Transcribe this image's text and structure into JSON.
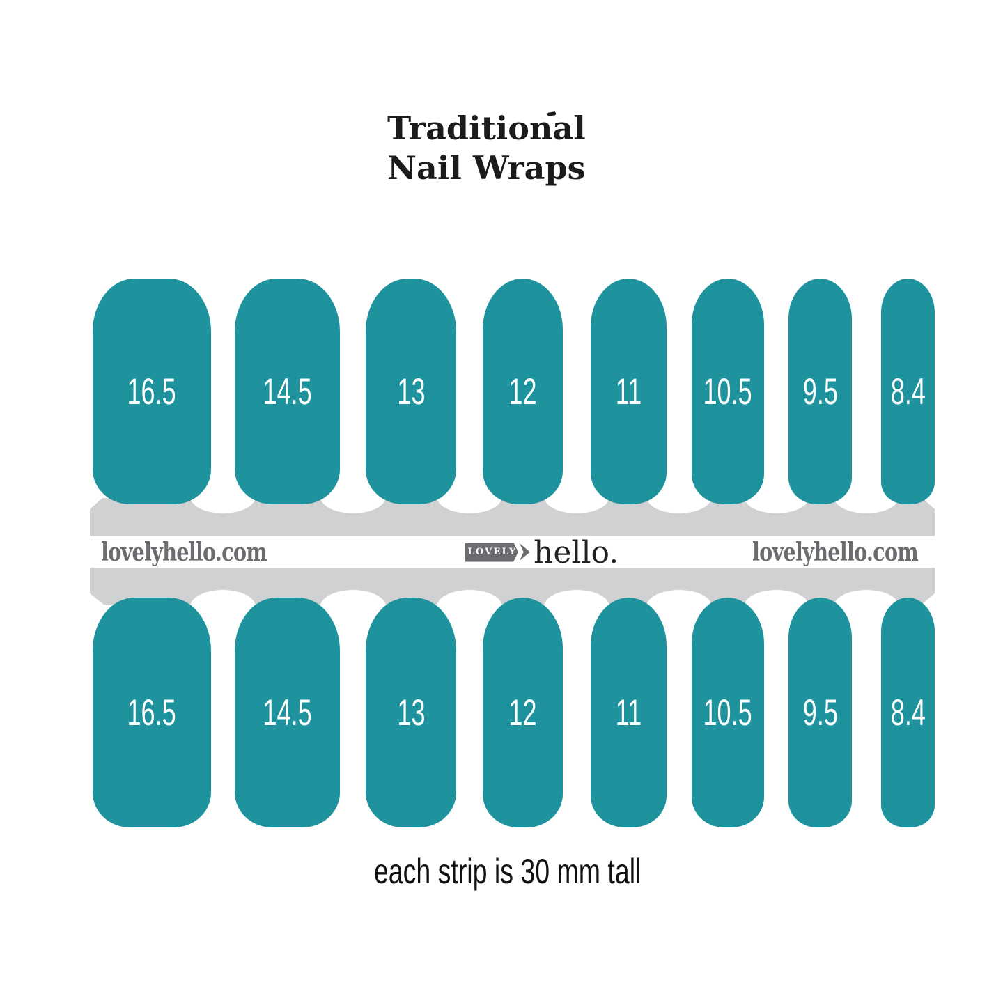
{
  "title": {
    "line1": "Traditional",
    "line2": "Nail Wraps"
  },
  "caption": "each strip is 30 mm tall",
  "branding": {
    "url_left": "lovelyhello.com",
    "url_right": "lovelyhello.com",
    "logo_badge": "LOVELY",
    "logo_word": "hello."
  },
  "sizes_mm": [
    "16.5",
    "14.5",
    "13",
    "12",
    "11",
    "10.5",
    "9.5",
    "8.4"
  ],
  "rows": [
    "top",
    "bottom"
  ],
  "strip_height_note_mm": 30,
  "colors": {
    "teal": "#1e939d",
    "band_gray": "#cfd1d2",
    "text_gray": "#6a6c6f",
    "ink": "#1b1b1b"
  }
}
